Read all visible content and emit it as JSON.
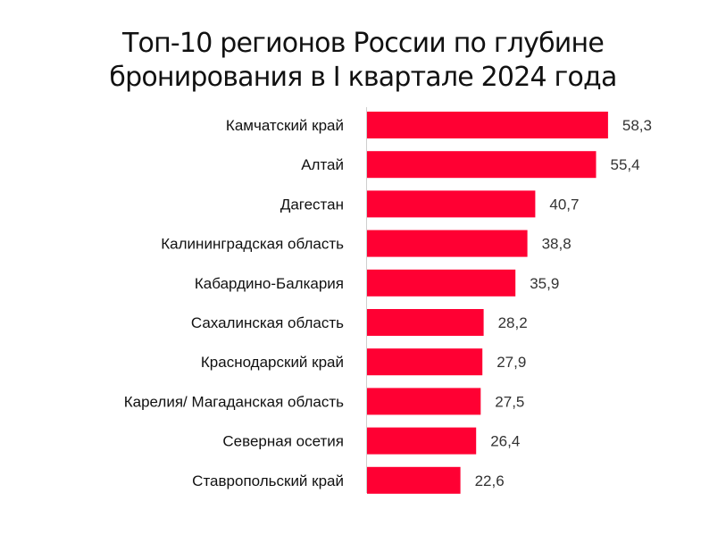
{
  "chart_data": {
    "type": "bar",
    "orientation": "horizontal",
    "title": "Топ-10 регионов России по глубине бронирования в I квартале 2024 года",
    "title_lines": [
      "Топ-10 регионов России по глубине",
      "бронирования в I квартале 2024 года"
    ],
    "categories": [
      "Камчатский край",
      "Алтай",
      "Дагестан",
      "Калининградская область",
      "Кабардино-Балкария",
      "Сахалинская область",
      "Краснодарский край",
      "Карелия/ Магаданская область",
      "Северная осетия",
      "Ставропольский край"
    ],
    "values": [
      58.3,
      55.4,
      40.7,
      38.8,
      35.9,
      28.2,
      27.9,
      27.5,
      26.4,
      22.6
    ],
    "value_labels": [
      "58,3",
      "55,4",
      "40,7",
      "38,8",
      "35,9",
      "28,2",
      "27,9",
      "27,5",
      "26,4",
      "22,6"
    ],
    "bar_color": "#FF0033",
    "xlabel": "",
    "ylabel": "",
    "grid": false,
    "legend": "none"
  }
}
